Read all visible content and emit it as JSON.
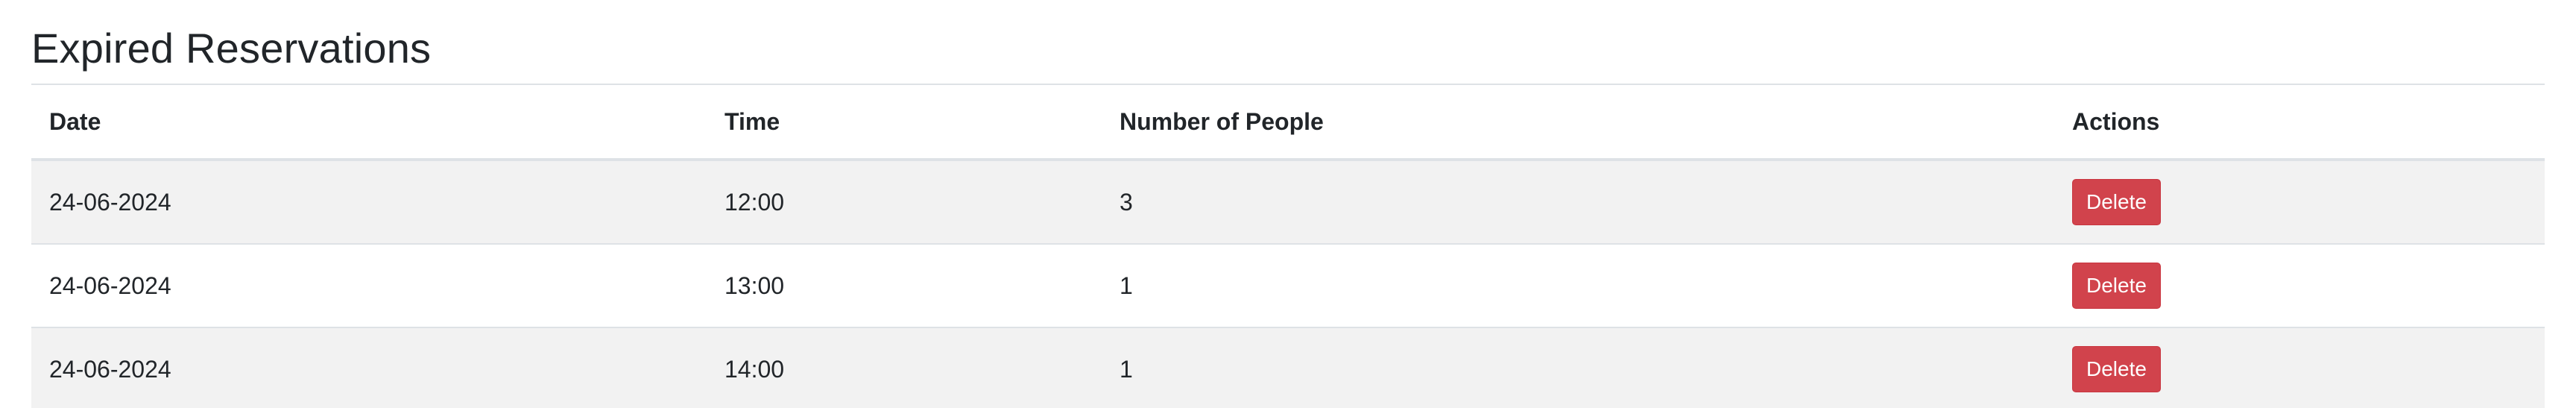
{
  "page": {
    "title": "Expired Reservations"
  },
  "table": {
    "headers": {
      "date": "Date",
      "time": "Time",
      "people": "Number of People",
      "actions": "Actions"
    },
    "rows": [
      {
        "date": "24-06-2024",
        "time": "12:00",
        "people": "3",
        "action_label": "Delete"
      },
      {
        "date": "24-06-2024",
        "time": "13:00",
        "people": "1",
        "action_label": "Delete"
      },
      {
        "date": "24-06-2024",
        "time": "14:00",
        "people": "1",
        "action_label": "Delete"
      }
    ]
  },
  "colors": {
    "delete_button": "#d1434c",
    "striped_row": "#f2f2f2",
    "border": "#dee2e6",
    "text": "#212529"
  }
}
